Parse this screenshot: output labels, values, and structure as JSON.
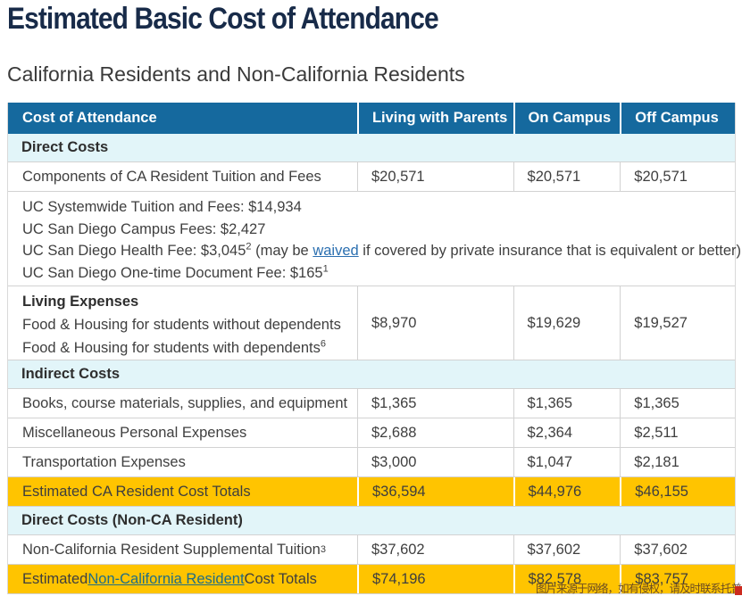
{
  "page": {
    "title": "Estimated Basic Cost of Attendance",
    "subtitle": "California Residents and Non-California Residents"
  },
  "colors": {
    "header_blue": "#15699E",
    "section_light_blue": "#E2F5F9",
    "total_yellow": "#FFC400",
    "title_navy": "#182B49",
    "waived_link_blue": "#2B6FB0",
    "resident_link_teal": "#1F6E86"
  },
  "table": {
    "header": {
      "col1": "Cost of Attendance",
      "col2": "Living with Parents",
      "col3": "On Campus",
      "col4": "Off Campus"
    },
    "rows": {
      "direct_costs_section": "Direct Costs",
      "components": {
        "label": "Components of CA Resident Tuition and Fees",
        "v1": "$20,571",
        "v2": "$20,571",
        "v3": "$20,571"
      },
      "fees_detail": {
        "line1": "UC Systemwide Tuition and Fees: $14,934",
        "line2": "UC San Diego Campus Fees: $2,427",
        "line3_pre": "UC San Diego Health Fee: $3,045",
        "line3_sup": "2",
        "line3_mid": " (may be ",
        "line3_link": "waived",
        "line3_post": " if covered by private insurance that is equivalent or better)",
        "line4": "UC San Diego One-time Document Fee: $165",
        "line4_sup": "1"
      },
      "living_expenses": {
        "title": "Living Expenses",
        "line1": "Food & Housing for students without dependents",
        "line2": "Food & Housing for students with dependents",
        "line2_sup": "6",
        "v1": "$8,970",
        "v2": "$19,629",
        "v3": "$19,527"
      },
      "indirect_costs_section": "Indirect Costs",
      "books": {
        "label": "Books, course materials, supplies, and equipment",
        "v1": "$1,365",
        "v2": "$1,365",
        "v3": "$1,365"
      },
      "misc": {
        "label": "Miscellaneous Personal Expenses",
        "v1": "$2,688",
        "v2": "$2,364",
        "v3": "$2,511"
      },
      "transportation": {
        "label": "Transportation Expenses",
        "v1": "$3,000",
        "v2": "$1,047",
        "v3": "$2,181"
      },
      "ca_totals": {
        "label": "Estimated CA Resident Cost Totals",
        "v1": "$36,594",
        "v2": "$44,976",
        "v3": "$46,155"
      },
      "nonca_direct_section": "Direct Costs (Non-CA Resident)",
      "supplemental": {
        "label": "Non-California Resident Supplemental Tuition",
        "sup": "3",
        "v1": "$37,602",
        "v2": "$37,602",
        "v3": "$37,602"
      },
      "nonca_totals": {
        "pre": "Estimated ",
        "link": "Non-California Resident",
        "post": " Cost Totals",
        "v1": "$74,196",
        "v2": "$82,578",
        "v3": "$83,757"
      }
    }
  },
  "watermark": {
    "text": "图片来源于网络，如有侵权，请及时联系托普仕留学删除"
  }
}
